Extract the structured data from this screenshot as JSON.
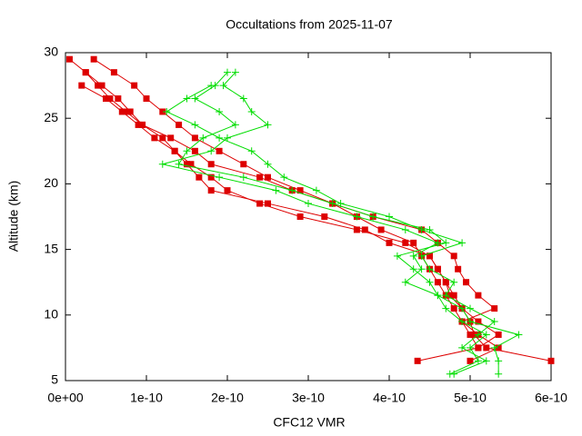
{
  "chart_data": {
    "type": "line",
    "title": "Occultations from 2025-11-07",
    "xlabel": "CFC12 VMR",
    "ylabel": "Altitude (km)",
    "xlim": [
      0,
      6e-10
    ],
    "xticks": [
      {
        "value": 0,
        "label": "0e+00"
      },
      {
        "value": 1e-10,
        "label": "1e-10"
      },
      {
        "value": 2e-10,
        "label": "2e-10"
      },
      {
        "value": 3e-10,
        "label": "3e-10"
      },
      {
        "value": 4e-10,
        "label": "4e-10"
      },
      {
        "value": 5e-10,
        "label": "5e-10"
      },
      {
        "value": 6e-10,
        "label": "6e-10"
      }
    ],
    "ylim": [
      5,
      30
    ],
    "yticks": [
      5,
      10,
      15,
      20,
      25,
      30
    ],
    "grid": false,
    "series": [
      {
        "color": "#dd0000",
        "marker": "square",
        "x": [
          5e-12,
          2.5e-11,
          4e-11,
          5.5e-11,
          7.5e-11,
          9.5e-11,
          1.2e-10,
          1.35e-10,
          1.55e-10,
          1.8e-10,
          2e-10,
          2.4e-10,
          2.9e-10,
          3.6e-10,
          4.2e-10,
          4.5e-10,
          4.6e-10,
          4.7e-10,
          4.8e-10,
          4.9e-10,
          5e-10,
          5.05e-10,
          5.2e-10,
          6e-10
        ],
        "values": [
          29.5,
          28.5,
          27.5,
          26.5,
          25.5,
          24.5,
          23.5,
          22.5,
          21.5,
          20.5,
          19.5,
          18.5,
          17.5,
          16.5,
          15.5,
          14.5,
          13.5,
          12.5,
          11.5,
          10.5,
          9.5,
          8.5,
          7.5,
          6.5
        ]
      },
      {
        "color": "#dd0000",
        "marker": "square",
        "x": [
          3.5e-11,
          6e-11,
          8.5e-11,
          1e-10,
          1.2e-10,
          1.4e-10,
          1.6e-10,
          1.9e-10,
          2.2e-10,
          2.5e-10,
          2.9e-10,
          3.3e-10,
          3.6e-10,
          3.9e-10,
          4.3e-10,
          4.4e-10,
          4.5e-10,
          4.6e-10,
          4.7e-10,
          4.8e-10,
          4.9e-10,
          5.1e-10,
          5.35e-10,
          5e-10
        ],
        "values": [
          29.5,
          28.5,
          27.5,
          26.5,
          25.5,
          24.5,
          23.5,
          22.5,
          21.5,
          20.5,
          19.5,
          18.5,
          17.5,
          16.5,
          15.5,
          14.5,
          13.5,
          12.5,
          11.5,
          10.5,
          9.5,
          8.5,
          7.5,
          6.5
        ]
      },
      {
        "color": "#dd0000",
        "marker": "square",
        "x": [
          2e-11,
          5e-11,
          7e-11,
          9e-11,
          1.1e-10,
          1.35e-10,
          1.5e-10,
          1.65e-10,
          1.8e-10,
          2.5e-10,
          3.2e-10,
          3.7e-10,
          4e-10,
          4.5e-10,
          4.6e-10,
          4.7e-10,
          4.75e-10,
          4.9e-10,
          5.1e-10,
          5.35e-10,
          5.1e-10
        ],
        "values": [
          27.5,
          26.5,
          25.5,
          24.5,
          23.5,
          22.5,
          21.5,
          20.5,
          19.5,
          18.5,
          17.5,
          16.5,
          15.5,
          14.5,
          13.5,
          12.5,
          11.5,
          10.5,
          9.5,
          8.5,
          7.5
        ]
      },
      {
        "color": "#dd0000",
        "marker": "square",
        "x": [
          2.5e-11,
          4.5e-11,
          6.5e-11,
          8e-11,
          9.5e-11,
          1.3e-10,
          1.6e-10,
          1.8e-10,
          2.4e-10,
          2.8e-10,
          3.3e-10,
          3.8e-10,
          4.4e-10,
          4.6e-10,
          4.8e-10,
          4.85e-10,
          4.95e-10,
          5.1e-10,
          5.3e-10,
          4.9e-10,
          5e-10,
          5.1e-10,
          4.35e-10
        ],
        "values": [
          28.5,
          27.5,
          26.5,
          25.5,
          24.5,
          23.5,
          22.5,
          21.5,
          20.5,
          19.5,
          18.5,
          17.5,
          16.5,
          15.5,
          14.5,
          13.5,
          12.5,
          11.5,
          10.5,
          9.5,
          8.5,
          7.5,
          6.5
        ]
      },
      {
        "color": "#00dd00",
        "marker": "plus",
        "x": [
          2e-10,
          1.85e-10,
          1.6e-10,
          1.9e-10,
          2.1e-10,
          1.7e-10,
          1.5e-10,
          1.4e-10,
          2.2e-10,
          2.8e-10,
          3.3e-10,
          3.8e-10,
          4.5e-10,
          4.7e-10,
          4.1e-10,
          4.3e-10,
          4.5e-10,
          4.6e-10,
          4.7e-10,
          4.9e-10,
          5.2e-10,
          5e-10,
          5.1e-10,
          4.75e-10
        ],
        "values": [
          28.5,
          27.5,
          26.5,
          25.5,
          24.5,
          23.5,
          22.5,
          21.5,
          20.5,
          19.5,
          18.5,
          17.5,
          16.5,
          15.5,
          14.5,
          13.5,
          12.5,
          11.5,
          10.5,
          9.5,
          8.5,
          7.5,
          6.5,
          5.5
        ]
      },
      {
        "color": "#00dd00",
        "marker": "plus",
        "x": [
          2.1e-10,
          1.95e-10,
          2.2e-10,
          2.3e-10,
          2.5e-10,
          2e-10,
          1.8e-10,
          1.2e-10,
          1.9e-10,
          2.6e-10,
          3e-10,
          3.6e-10,
          4.2e-10,
          4.6e-10,
          4.3e-10,
          4.4e-10,
          4.2e-10,
          4.6e-10,
          4.9e-10,
          5e-10,
          5.6e-10,
          5.3e-10,
          5.35e-10,
          5.35e-10
        ],
        "values": [
          28.5,
          27.5,
          26.5,
          25.5,
          24.5,
          23.5,
          22.5,
          21.5,
          20.5,
          19.5,
          18.5,
          17.5,
          16.5,
          15.5,
          14.5,
          13.5,
          12.5,
          11.5,
          10.5,
          9.5,
          8.5,
          7.5,
          6.5,
          5.5
        ]
      },
      {
        "color": "#00dd00",
        "marker": "plus",
        "x": [
          1.8e-10,
          1.5e-10,
          1.25e-10,
          1.6e-10,
          1.9e-10,
          2.3e-10,
          2.5e-10,
          2.7e-10,
          3.1e-10,
          3.4e-10,
          4e-10,
          4.4e-10,
          4.9e-10,
          4.4e-10,
          4.5e-10,
          4.8e-10,
          4.7e-10,
          5e-10,
          5.3e-10,
          5.1e-10,
          4.9e-10,
          5.2e-10,
          4.8e-10
        ],
        "values": [
          27.5,
          26.5,
          25.5,
          24.5,
          23.5,
          22.5,
          21.5,
          20.5,
          19.5,
          18.5,
          17.5,
          16.5,
          15.5,
          14.5,
          13.5,
          12.5,
          11.5,
          10.5,
          9.5,
          8.5,
          7.5,
          6.5,
          5.5
        ]
      }
    ]
  }
}
